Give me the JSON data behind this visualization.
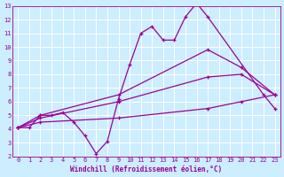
{
  "background_color": "#cceeff",
  "grid_color": "#ffffff",
  "line_color": "#990099",
  "xlabel": "Windchill (Refroidissement éolien,°C)",
  "xlim": [
    -0.5,
    23.5
  ],
  "ylim": [
    2,
    13
  ],
  "xticks": [
    0,
    1,
    2,
    3,
    4,
    5,
    6,
    7,
    8,
    9,
    10,
    11,
    12,
    13,
    14,
    15,
    16,
    17,
    18,
    19,
    20,
    21,
    22,
    23
  ],
  "yticks": [
    2,
    3,
    4,
    5,
    6,
    7,
    8,
    9,
    10,
    11,
    12,
    13
  ],
  "line1_x": [
    0,
    1,
    2,
    3,
    4,
    5,
    6,
    7,
    8,
    9,
    10,
    11,
    12,
    13,
    14,
    15,
    16,
    17,
    22,
    23
  ],
  "line1_y": [
    4.1,
    4.1,
    5.0,
    5.0,
    5.2,
    4.5,
    3.5,
    2.2,
    3.1,
    6.2,
    8.7,
    11.0,
    11.5,
    10.5,
    10.5,
    12.2,
    13.2,
    12.2,
    6.5,
    5.5
  ],
  "line2_x": [
    0,
    2,
    9,
    17,
    20,
    23
  ],
  "line2_y": [
    4.1,
    5.0,
    6.5,
    9.8,
    8.5,
    6.5
  ],
  "line3_x": [
    0,
    2,
    9,
    17,
    20,
    23
  ],
  "line3_y": [
    4.1,
    4.8,
    6.0,
    7.8,
    8.0,
    6.5
  ],
  "line4_x": [
    0,
    2,
    9,
    17,
    20,
    23
  ],
  "line4_y": [
    4.1,
    4.5,
    4.8,
    5.5,
    6.0,
    6.5
  ]
}
